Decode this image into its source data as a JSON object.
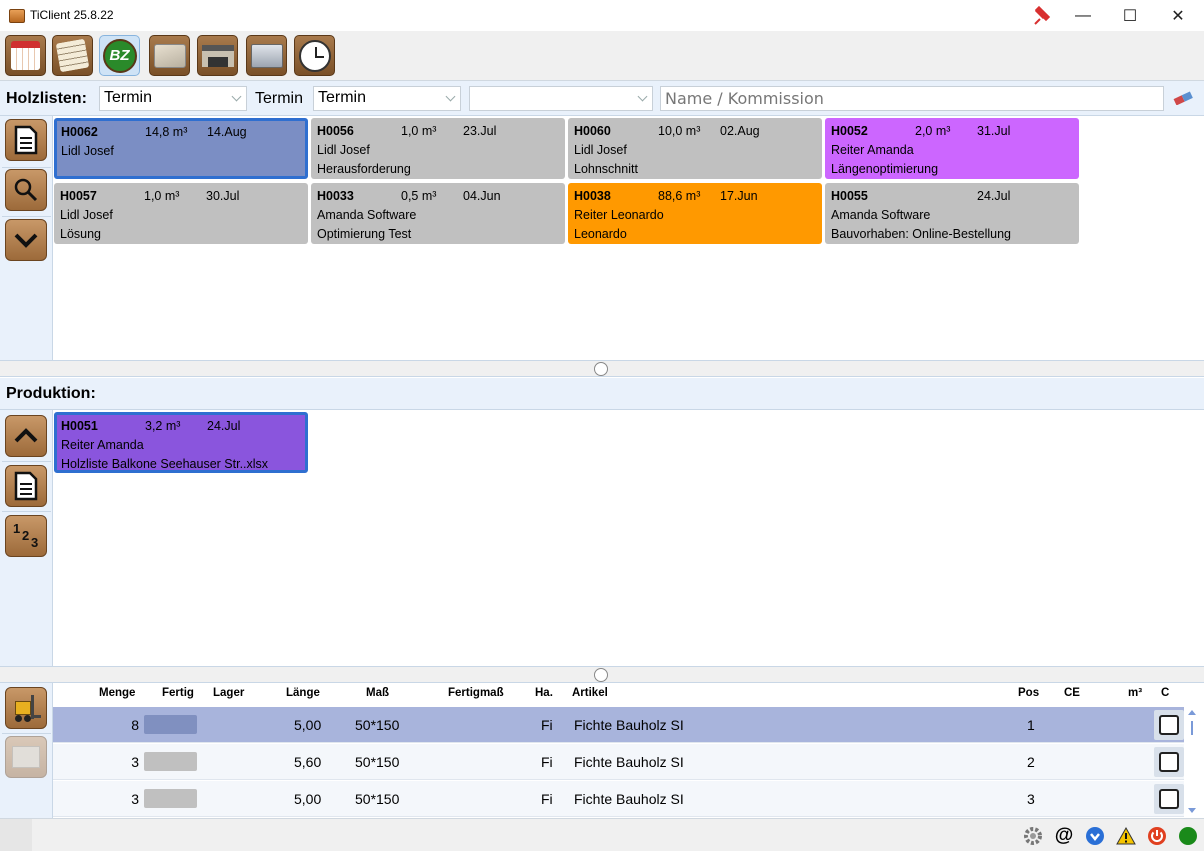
{
  "window": {
    "title": "TiClient 25.8.22",
    "minimize_glyph": "—",
    "maximize_glyph": "☐",
    "close_glyph": "✕"
  },
  "toolbar": {
    "buttons": [
      {
        "icon": "calendar-icon"
      },
      {
        "icon": "notepad-icon"
      },
      {
        "icon": "bz-icon",
        "label": "BZ",
        "active": true
      },
      {
        "icon": "lumber-stack-icon"
      },
      {
        "icon": "warehouse-icon"
      },
      {
        "icon": "machine-icon"
      },
      {
        "icon": "clock-icon"
      }
    ]
  },
  "filter": {
    "label": "Holzlisten:",
    "select1": "Termin",
    "label2": "Termin",
    "select2": "Termin",
    "select3": "",
    "search_placeholder": "Name / Kommission"
  },
  "holzlisten": {
    "cards": [
      {
        "id": "H0062",
        "volume": "14,8 m³",
        "date": "14.Aug",
        "line2": "Lidl Josef",
        "line3": "",
        "color": "#7b8ec4",
        "selected": true
      },
      {
        "id": "H0056",
        "volume": "1,0 m³",
        "date": "23.Jul",
        "line2": "Lidl Josef",
        "line3": "Herausforderung",
        "color": "#c0c0c0"
      },
      {
        "id": "H0060",
        "volume": "10,0 m³",
        "date": "02.Aug",
        "line2": "Lidl Josef",
        "line3": "Lohnschnitt",
        "color": "#c0c0c0"
      },
      {
        "id": "H0052",
        "volume": "2,0 m³",
        "date": "31.Jul",
        "line2": "Reiter Amanda",
        "line3": "Längenoptimierung",
        "color": "#cc66ff"
      },
      {
        "id": "H0057",
        "volume": "1,0 m³",
        "date": "30.Jul",
        "line2": "Lidl Josef",
        "line3": "Lösung",
        "color": "#c0c0c0"
      },
      {
        "id": "H0033",
        "volume": "0,5 m³",
        "date": "04.Jun",
        "line2": "Amanda Software",
        "line3": "Optimierung Test",
        "color": "#c0c0c0"
      },
      {
        "id": "H0038",
        "volume": "88,6 m³",
        "date": "17.Jun",
        "line2": "Reiter Leonardo",
        "line3": "Leonardo",
        "color": "#ff9900"
      },
      {
        "id": "H0055",
        "volume": "",
        "date": "24.Jul",
        "line2": "Amanda Software",
        "line3": "Bauvorhaben: Online-Bestellung",
        "color": "#c0c0c0"
      }
    ]
  },
  "produktion": {
    "title": "Produktion:",
    "cards": [
      {
        "id": "H0051",
        "volume": "3,2 m³",
        "date": "24.Jul",
        "line2": "Reiter Amanda",
        "line3": "Holzliste Balkone Seehauser Str..xlsx",
        "color": "#8a55dd",
        "selected": true
      }
    ],
    "sort_label": "1 2 3"
  },
  "table": {
    "headers": {
      "menge": "Menge",
      "fertig": "Fertig",
      "lager": "Lager",
      "laenge": "Länge",
      "mass": "Maß",
      "fertigmass": "Fertigmaß",
      "ha": "Ha.",
      "artikel": "Artikel",
      "pos": "Pos",
      "ce": "CE",
      "m3": "m³",
      "c": "C"
    },
    "rows": [
      {
        "menge": "8",
        "laenge": "5,00",
        "mass": "50*150",
        "ha": "Fi",
        "artikel": "Fichte Bauholz SI",
        "pos": "1",
        "fertig_color": "#8090c0",
        "selected": true
      },
      {
        "menge": "3",
        "laenge": "5,60",
        "mass": "50*150",
        "ha": "Fi",
        "artikel": "Fichte Bauholz SI",
        "pos": "2",
        "fertig_color": "#c0c0c0"
      },
      {
        "menge": "3",
        "laenge": "5,00",
        "mass": "50*150",
        "ha": "Fi",
        "artikel": "Fichte Bauholz SI",
        "pos": "3",
        "fertig_color": "#c0c0c0"
      }
    ]
  },
  "status": {
    "at_glyph": "@"
  }
}
